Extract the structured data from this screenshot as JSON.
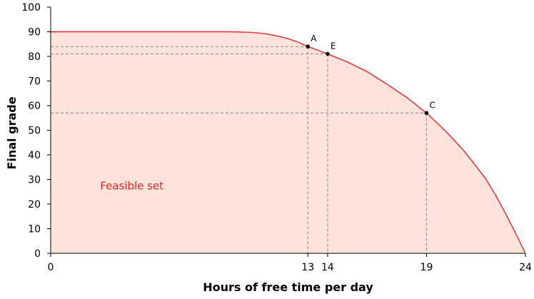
{
  "colors": {
    "frontier": "#e8262b",
    "feasible_fill": "#fde3d9",
    "guide": "#888888",
    "axis": "#000000",
    "region_label": "#e8262b"
  },
  "chart_data": {
    "type": "area",
    "xlabel": "Hours of free time per day",
    "ylabel": "Final grade",
    "xlim": [
      0,
      24
    ],
    "ylim": [
      0,
      100
    ],
    "x_ticks": [
      0,
      13,
      14,
      19,
      24
    ],
    "y_ticks": [
      0,
      10,
      20,
      30,
      40,
      50,
      60,
      70,
      80,
      90,
      100
    ],
    "grid": false,
    "region_label": "Feasible set",
    "series": [
      {
        "x": [
          0,
          4,
          8,
          9,
          10,
          10.5,
          11,
          11.5,
          12,
          12.5,
          13,
          13.5,
          14,
          15,
          16,
          17,
          18,
          19,
          20,
          21,
          22,
          22.5,
          23,
          23.5,
          24
        ],
        "y": [
          90,
          90,
          90,
          90,
          89.8,
          89.5,
          89,
          88.2,
          87.2,
          85.8,
          84,
          82.5,
          81,
          77.7,
          73.8,
          68.7,
          63.3,
          57,
          49.4,
          40.6,
          30.2,
          23.5,
          16.1,
          8.2,
          0
        ]
      }
    ],
    "points": [
      {
        "label": "A",
        "x": 13,
        "y": 84
      },
      {
        "label": "E",
        "x": 14,
        "y": 81
      },
      {
        "label": "C",
        "x": 19,
        "y": 57
      }
    ]
  }
}
